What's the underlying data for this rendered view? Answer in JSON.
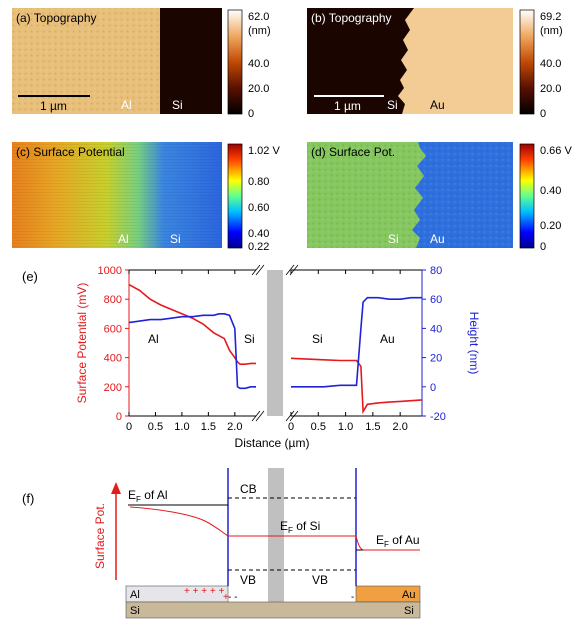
{
  "panels": {
    "a": {
      "label": "(a) Topography",
      "colorbar": {
        "unit": "(nm)",
        "ticks": [
          "62.0",
          "40.0",
          "20.0",
          "0"
        ]
      },
      "scalebar": "1 µm",
      "left_material": "Al",
      "right_material": "Si"
    },
    "b": {
      "label": "(b) Topography",
      "colorbar": {
        "unit": "(nm)",
        "ticks": [
          "69.2",
          "40.0",
          "20.0",
          "0"
        ]
      },
      "scalebar": "1 µm",
      "left_material": "Si",
      "right_material": "Au"
    },
    "c": {
      "label": "(c) Surface Potential",
      "colorbar": {
        "ticks": [
          "1.02 V",
          "0.80",
          "0.60",
          "0.40",
          "0.22"
        ]
      },
      "left_material": "Al",
      "right_material": "Si"
    },
    "d": {
      "label": "(d) Surface Pot.",
      "colorbar": {
        "ticks": [
          "0.66 V",
          "0.40",
          "0.20",
          "0"
        ]
      },
      "left_material": "Si",
      "right_material": "Au"
    }
  },
  "chart_data": {
    "type": "line",
    "panel_label": "(e)",
    "xlabel": "Distance (µm)",
    "ylabel": "Surface Potential (mV)",
    "ylabel_right": "Height (nm)",
    "ylim": [
      0,
      1000
    ],
    "ylim_right": [
      -20,
      80
    ],
    "yticks": [
      "0",
      "200",
      "400",
      "600",
      "800",
      "1000"
    ],
    "yticks_right": [
      "-20",
      "0",
      "20",
      "40",
      "60",
      "80"
    ],
    "xticks_left": [
      "0",
      "0.5",
      "1.0",
      "1.5",
      "2.0"
    ],
    "xticks_right": [
      "0",
      "0.5",
      "1.0",
      "1.5",
      "2.0"
    ],
    "colors": {
      "potential": "#e41a1c",
      "height": "#1f22d6"
    },
    "region_labels": [
      "Al",
      "Si",
      "Si",
      "Au"
    ],
    "left_segment": {
      "x": [
        0,
        0.2,
        0.4,
        0.6,
        0.8,
        1.0,
        1.2,
        1.4,
        1.6,
        1.7,
        1.8,
        1.9,
        2.0,
        2.05,
        2.1,
        2.2,
        2.3,
        2.4
      ],
      "potential": [
        900,
        860,
        800,
        760,
        730,
        700,
        670,
        630,
        570,
        550,
        530,
        450,
        400,
        370,
        355,
        355,
        360,
        360
      ],
      "height": [
        44,
        45,
        46,
        46,
        47,
        48,
        48,
        49,
        49,
        50,
        50,
        49,
        40,
        0,
        -1,
        -1,
        0,
        0
      ]
    },
    "right_segment": {
      "x": [
        0,
        0.3,
        0.6,
        0.9,
        1.2,
        1.28,
        1.32,
        1.4,
        1.6,
        1.8,
        2.0,
        2.2,
        2.4
      ],
      "potential": [
        395,
        390,
        385,
        380,
        380,
        340,
        30,
        80,
        90,
        95,
        100,
        105,
        110
      ],
      "height": [
        0,
        0,
        0,
        1,
        1,
        40,
        58,
        61,
        61,
        60,
        60,
        61,
        61
      ]
    }
  },
  "band_diagram": {
    "panel_label": "(f)",
    "axis_label": "Surface Pot.",
    "ef_al": "E",
    "ef_al_sub": "F",
    "ef_al_rest": " of Al",
    "ef_si": "E",
    "ef_si_sub": "F",
    "ef_si_rest": " of Si",
    "ef_au": "E",
    "ef_au_sub": "F",
    "ef_au_rest": " of Au",
    "cb": "CB",
    "vb_left": "VB",
    "vb_right": "VB",
    "al": "Al",
    "si_left": "Si",
    "si_right": "Si",
    "au": "Au",
    "plus_charges": "+ + + + +",
    "plus_charge_2": "+",
    "minus_charges": "- -",
    "minus_charge_2": "-",
    "colors": {
      "al": "#e6e6ea",
      "au": "#f0a040",
      "si": "#c9b99a",
      "interface": "#2222cc",
      "potential": "#e41a1c"
    }
  }
}
